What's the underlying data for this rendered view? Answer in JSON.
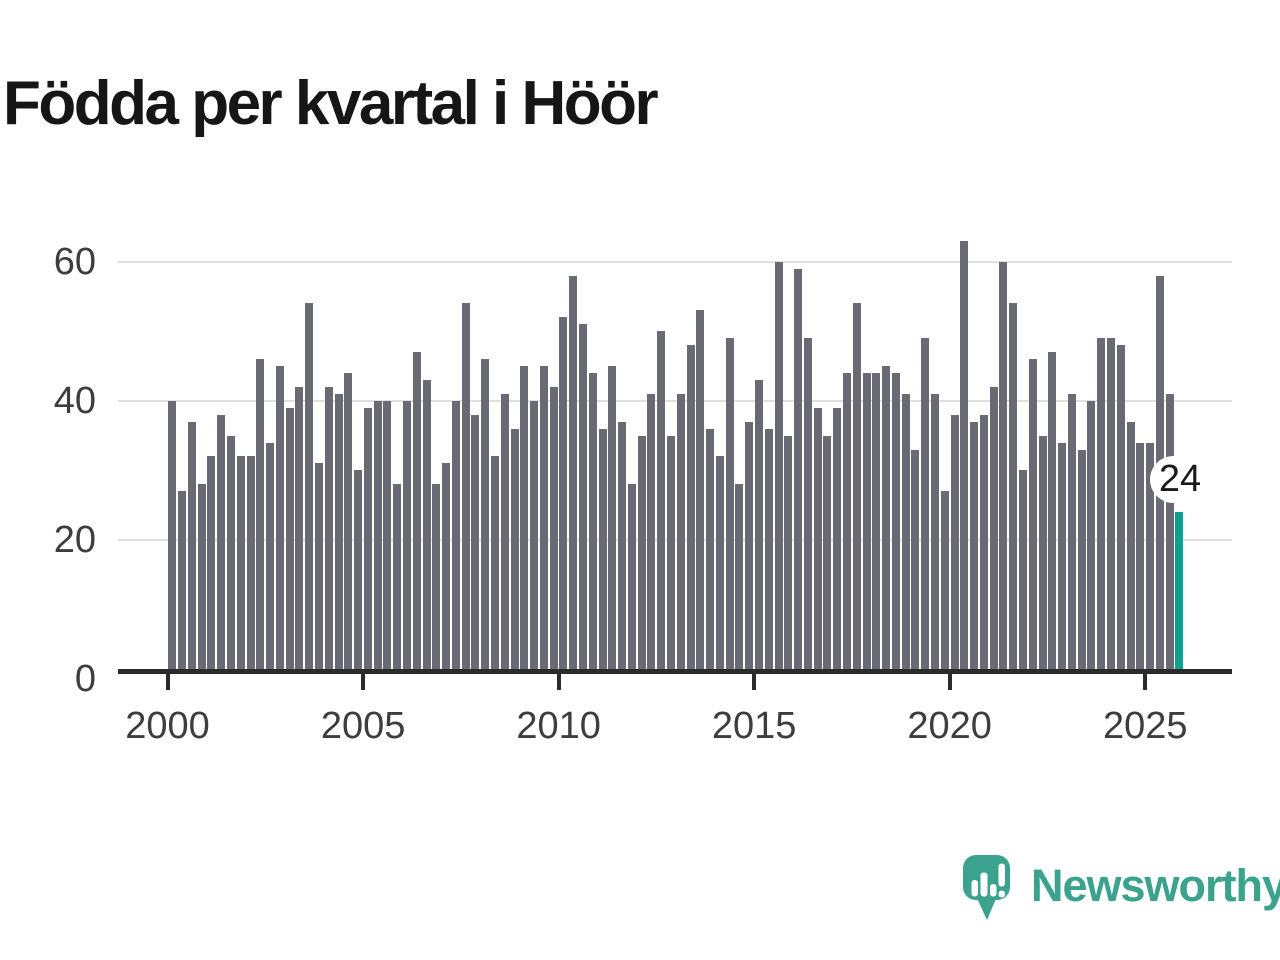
{
  "title": "Födda per kvartal i Höör",
  "annotation": {
    "label": "24"
  },
  "logo": {
    "text": "Newsworthy"
  },
  "colors": {
    "bar": "#6a6a74",
    "highlight": "#0fa092",
    "axis": "#2b2b2b",
    "grid": "#e0e0e0",
    "tick_text": "#3d3d3d",
    "title_text": "#161616",
    "brand": "#3ba28e"
  },
  "chart_data": {
    "type": "bar",
    "title": "Födda per kvartal i Höör",
    "x_first": "2000-Q1",
    "x_last": "2025-Q4",
    "x_tick_labels": [
      "2000",
      "2005",
      "2010",
      "2015",
      "2020",
      "2025"
    ],
    "y_tick_labels": [
      "0",
      "20",
      "40",
      "60"
    ],
    "y_ticks": [
      0,
      20,
      40,
      60
    ],
    "ylim": [
      0,
      65
    ],
    "grid": true,
    "legend": "none",
    "highlight_last_bar": true,
    "last_bar_label": "24",
    "values": [
      40,
      27,
      37,
      28,
      32,
      38,
      35,
      32,
      32,
      46,
      34,
      45,
      39,
      42,
      54,
      31,
      42,
      41,
      44,
      30,
      39,
      40,
      40,
      28,
      40,
      47,
      43,
      28,
      31,
      40,
      54,
      38,
      46,
      32,
      41,
      36,
      45,
      40,
      45,
      42,
      52,
      58,
      51,
      44,
      36,
      45,
      37,
      28,
      35,
      41,
      50,
      35,
      41,
      48,
      53,
      36,
      32,
      49,
      28,
      37,
      43,
      36,
      60,
      35,
      59,
      49,
      39,
      35,
      39,
      44,
      54,
      44,
      44,
      45,
      44,
      41,
      33,
      49,
      41,
      27,
      38,
      63,
      37,
      38,
      42,
      60,
      54,
      30,
      46,
      35,
      47,
      34,
      41,
      33,
      40,
      49,
      49,
      48,
      37,
      34,
      34,
      58,
      41,
      24
    ]
  }
}
